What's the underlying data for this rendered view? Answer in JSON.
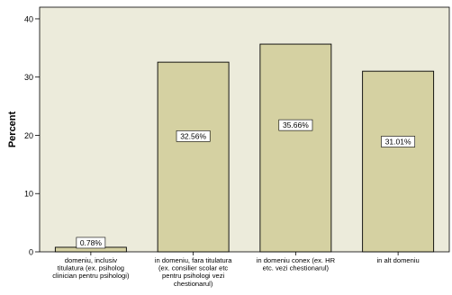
{
  "chart_data": {
    "type": "bar",
    "ylabel": "Percent",
    "ylim": [
      0,
      42
    ],
    "yticks": [
      0,
      10,
      20,
      30,
      40
    ],
    "grid": false,
    "bar_color": "#d5d1a2",
    "plot_background": "#ecebdb",
    "categories": [
      [
        "domeniu, inclusiv",
        "titulatura (ex. psiholog",
        "clinician pentru psihologi)"
      ],
      [
        "in domeniu, fara titulatura",
        "(ex. consilier scolar etc",
        "pentru psihologi vezi",
        "chestionarul)"
      ],
      [
        "in domeniu conex (ex. HR",
        "etc. vezi chestionarul)"
      ],
      [
        "in alt domeniu"
      ]
    ],
    "values": [
      0.78,
      32.56,
      35.66,
      31.01
    ],
    "data_labels": [
      "0.78%",
      "32.56%",
      "35.66%",
      "31.01%"
    ]
  }
}
